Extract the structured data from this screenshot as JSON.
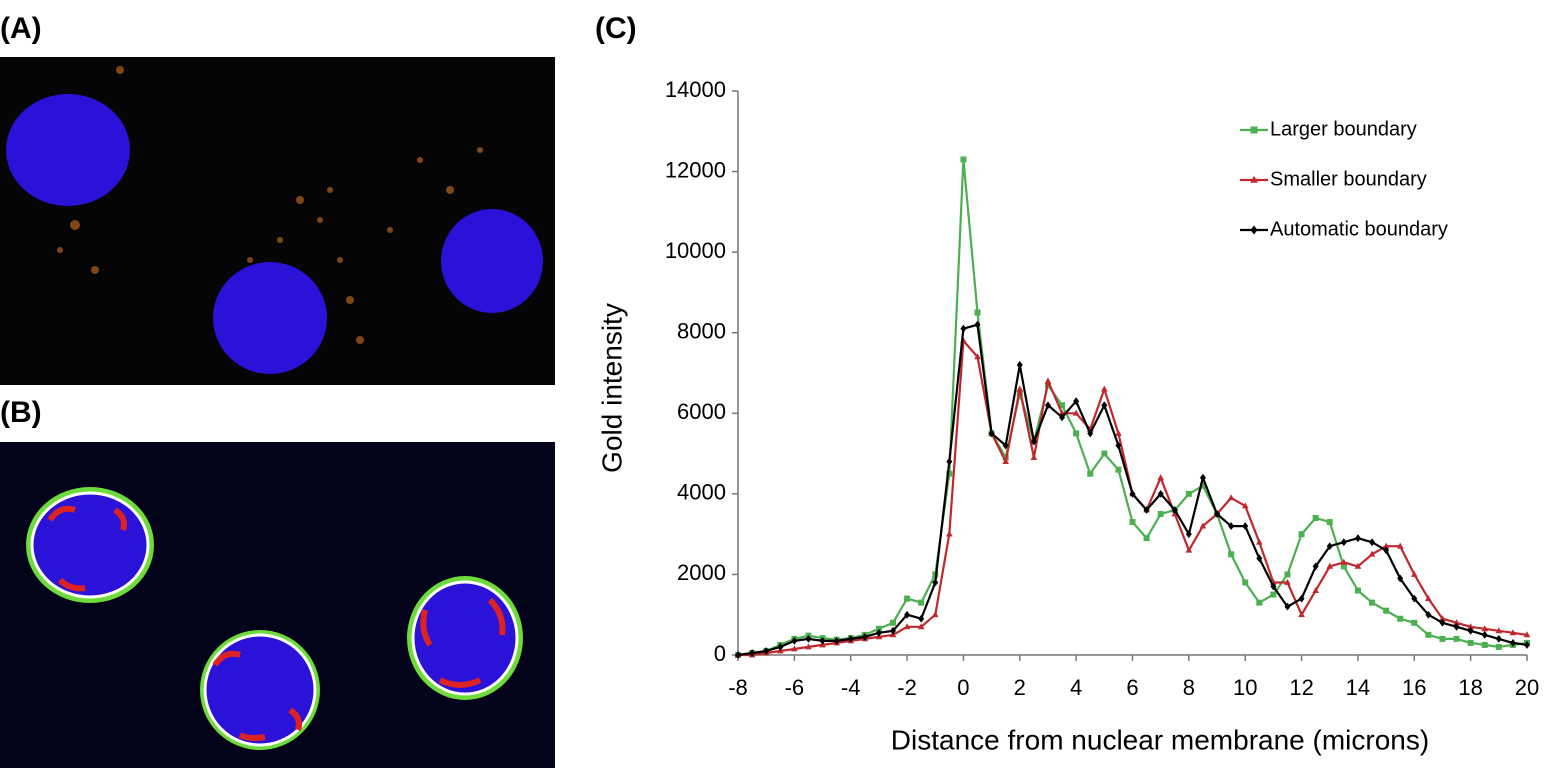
{
  "panel_labels": [
    "(A)",
    "(B)",
    "(C)"
  ],
  "chart_data": {
    "type": "line",
    "xlabel": "Distance from nuclear membrane (microns)",
    "ylabel": "Gold intensity",
    "x": [
      -8,
      -7.5,
      -7,
      -6.5,
      -6,
      -5.5,
      -5,
      -4.5,
      -4,
      -3.5,
      -3,
      -2.5,
      -2,
      -1.5,
      -1,
      -0.5,
      0,
      0.5,
      1,
      1.5,
      2,
      2.5,
      3,
      3.5,
      4,
      4.5,
      5,
      5.5,
      6,
      6.5,
      7,
      7.5,
      8,
      8.5,
      9,
      9.5,
      10,
      10.5,
      11,
      11.5,
      12,
      12.5,
      13,
      13.5,
      14,
      14.5,
      15,
      15.5,
      16,
      16.5,
      17,
      17.5,
      18,
      18.5,
      19,
      19.5,
      20
    ],
    "series": [
      {
        "name": "Larger boundary",
        "color": "#4caf50",
        "marker": "square",
        "values": [
          0,
          50,
          100,
          250,
          400,
          480,
          420,
          380,
          420,
          500,
          650,
          800,
          1400,
          1300,
          2000,
          4500,
          12300,
          8500,
          5500,
          4900,
          6500,
          5300,
          6700,
          6200,
          5500,
          4500,
          5000,
          4600,
          3300,
          2900,
          3500,
          3600,
          4000,
          4200,
          3500,
          2500,
          1800,
          1300,
          1500,
          2000,
          3000,
          3400,
          3300,
          2200,
          1600,
          1300,
          1100,
          900,
          800,
          500,
          400,
          400,
          300,
          250,
          200,
          250,
          300
        ]
      },
      {
        "name": "Smaller boundary",
        "color": "#c0282d",
        "marker": "triangle",
        "values": [
          0,
          0,
          50,
          100,
          150,
          200,
          250,
          300,
          350,
          400,
          450,
          500,
          700,
          700,
          1000,
          3000,
          7800,
          7400,
          5500,
          4800,
          6600,
          4900,
          6800,
          6000,
          6000,
          5600,
          6600,
          5500,
          4000,
          3600,
          4400,
          3500,
          2600,
          3200,
          3500,
          3900,
          3700,
          2800,
          1800,
          1800,
          1000,
          1600,
          2200,
          2300,
          2200,
          2500,
          2700,
          2700,
          2000,
          1400,
          900,
          800,
          700,
          650,
          600,
          550,
          500
        ]
      },
      {
        "name": "Automatic boundary",
        "color": "#000000",
        "marker": "diamond",
        "values": [
          0,
          50,
          100,
          200,
          350,
          400,
          350,
          350,
          400,
          450,
          550,
          600,
          1000,
          900,
          1800,
          4800,
          8100,
          8200,
          5500,
          5200,
          7200,
          5300,
          6200,
          5900,
          6300,
          5500,
          6200,
          5200,
          4000,
          3600,
          4000,
          3600,
          3000,
          4400,
          3500,
          3200,
          3200,
          2400,
          1700,
          1200,
          1400,
          2200,
          2700,
          2800,
          2900,
          2800,
          2600,
          1900,
          1400,
          1000,
          800,
          700,
          600,
          500,
          400,
          300,
          250
        ]
      }
    ],
    "xlim": [
      -8,
      20
    ],
    "xticks": [
      -8,
      -6,
      -4,
      -2,
      0,
      2,
      4,
      6,
      8,
      10,
      12,
      14,
      16,
      18,
      20
    ],
    "ylim": [
      0,
      14000
    ],
    "yticks": [
      0,
      2000,
      4000,
      6000,
      8000,
      10000,
      12000,
      14000
    ],
    "grid": false,
    "legend": "upper right"
  }
}
